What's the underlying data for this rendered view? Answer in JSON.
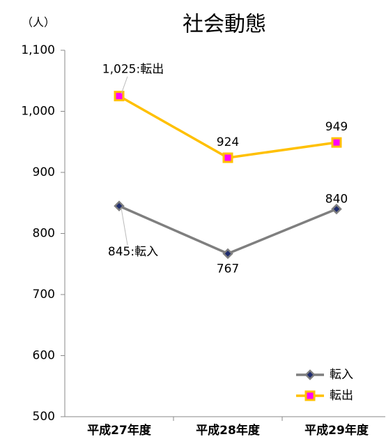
{
  "chart_data": {
    "type": "line",
    "title": "社会動態",
    "y_label": "（人）",
    "categories": [
      "平成27年度",
      "平成28年度",
      "平成29年度"
    ],
    "series": [
      {
        "name": "転入",
        "color": "#7f7f7f",
        "marker": "diamond",
        "marker_color": "#1f2d6e",
        "values": [
          845,
          767,
          840
        ],
        "value_labels": [
          "845:転入",
          "767",
          "840"
        ]
      },
      {
        "name": "転出",
        "color": "#ffc000",
        "marker": "square",
        "marker_color": "#ff00ff",
        "values": [
          1025,
          924,
          949
        ],
        "value_labels": [
          "1,025:転出",
          "924",
          "949"
        ]
      }
    ],
    "ylim": [
      500,
      1100
    ],
    "yticks": [
      500,
      600,
      700,
      800,
      900,
      {
        "value": 1000,
        "label": "1,000"
      },
      {
        "value": 1100,
        "label": "1,100"
      }
    ],
    "legend": "lower right"
  }
}
